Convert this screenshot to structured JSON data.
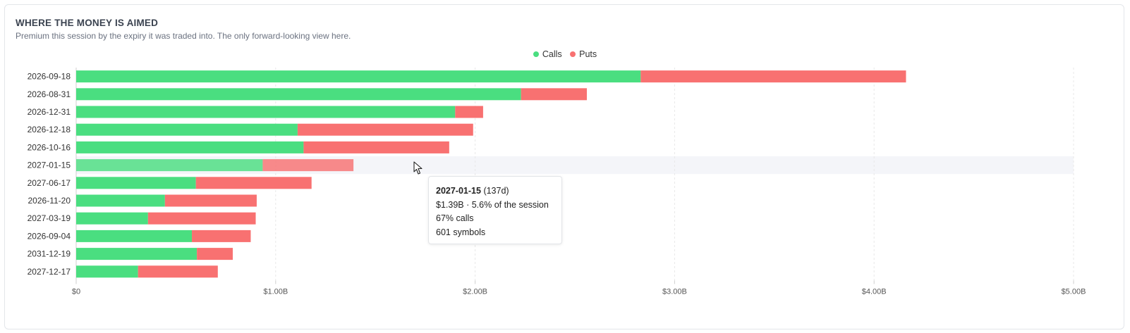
{
  "header": {
    "title": "WHERE THE MONEY IS AIMED",
    "subtitle": "Premium this session by the expiry it was traded into. The only forward-looking view here."
  },
  "legend": [
    {
      "label": "Calls",
      "color": "#4ade80"
    },
    {
      "label": "Puts",
      "color": "#f87171"
    }
  ],
  "tooltip": {
    "date": "2027-01-15",
    "days": "(137d)",
    "line1": "$1.39B · 5.6% of the session",
    "line2": "67% calls",
    "line3": "601 symbols"
  },
  "chart_data": {
    "type": "bar",
    "orientation": "horizontal",
    "stacked": true,
    "categories": [
      "2026-09-18",
      "2026-08-31",
      "2026-12-31",
      "2026-12-18",
      "2026-10-16",
      "2027-01-15",
      "2027-06-17",
      "2026-11-20",
      "2027-03-19",
      "2026-09-04",
      "2031-12-19",
      "2027-12-17"
    ],
    "series": [
      {
        "name": "Calls",
        "color": "#4ade80",
        "values": [
          2.83,
          2.23,
          1.9,
          1.11,
          1.14,
          0.935,
          0.6,
          0.445,
          0.36,
          0.58,
          0.605,
          0.31
        ]
      },
      {
        "name": "Puts",
        "color": "#f87171",
        "values": [
          1.33,
          0.33,
          0.14,
          0.88,
          0.73,
          0.455,
          0.58,
          0.46,
          0.54,
          0.295,
          0.18,
          0.4
        ]
      }
    ],
    "highlight_index": 5,
    "xlim": [
      0,
      5
    ],
    "xticks": [
      0,
      1,
      2,
      3,
      4,
      5
    ],
    "xtick_labels": [
      "$0",
      "$1.00B",
      "$2.00B",
      "$3.00B",
      "$4.00B",
      "$5.00B"
    ],
    "xlabel": "",
    "ylabel": "",
    "grid": "vertical-dashed",
    "legend_position": "top-center"
  }
}
